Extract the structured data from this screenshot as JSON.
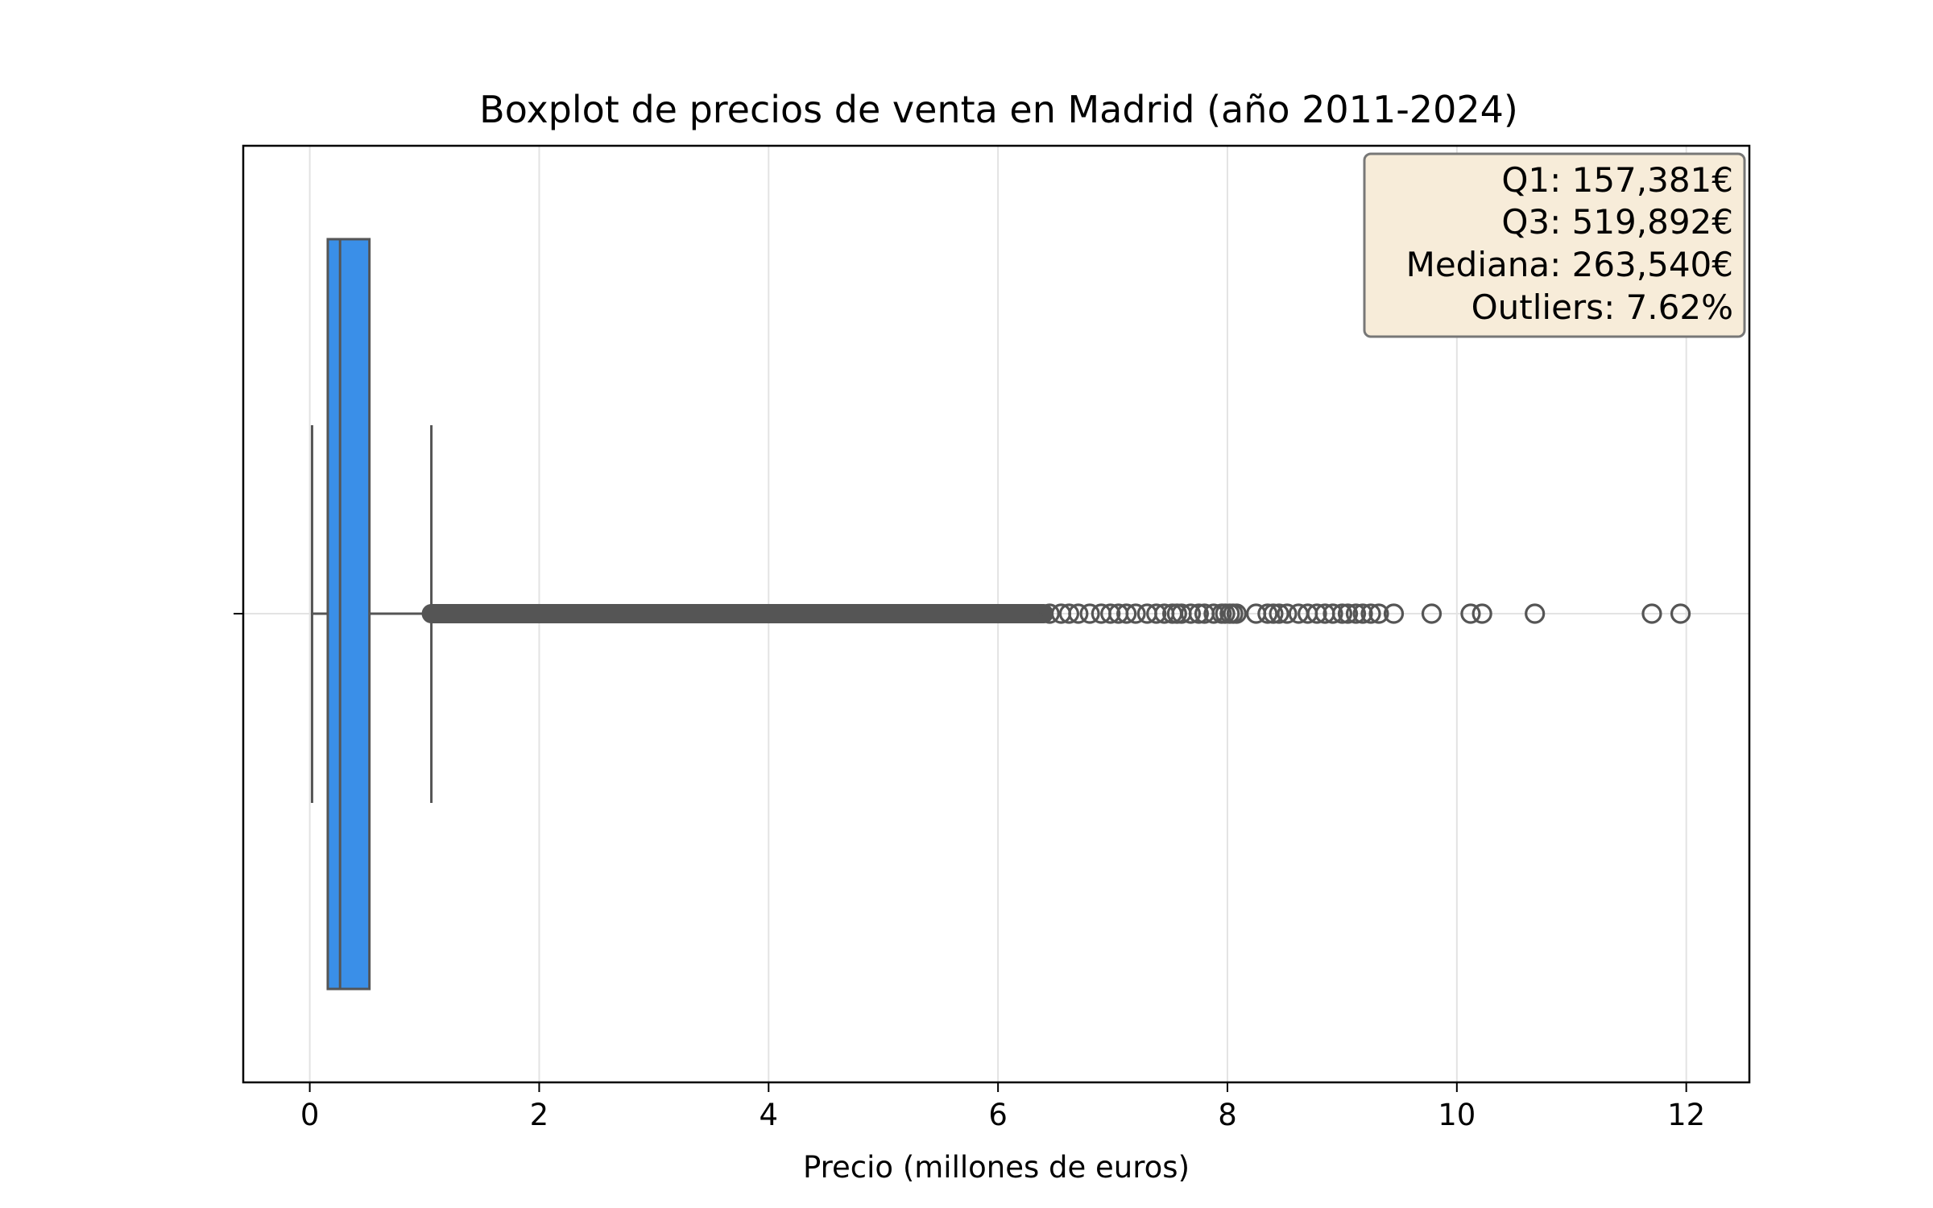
{
  "chart_data": {
    "type": "boxplot",
    "title": "Boxplot de precios de venta en Madrid (año 2011-2024)",
    "xlabel": "Precio (millones de euros)",
    "ylabel": "",
    "xlim": [
      -0.58,
      12.55
    ],
    "x_ticks": [
      0,
      2,
      4,
      6,
      8,
      10,
      12
    ],
    "grid": "x",
    "box": {
      "whisker_low": 0.02,
      "q1": 0.157,
      "median": 0.264,
      "q3": 0.52,
      "whisker_high": 1.06,
      "color": "#3a8fe8",
      "line_color": "#555555"
    },
    "outlier_dense_range": [
      1.06,
      6.4
    ],
    "outliers": [
      6.45,
      6.55,
      6.62,
      6.7,
      6.8,
      6.9,
      6.98,
      7.05,
      7.12,
      7.2,
      7.3,
      7.38,
      7.45,
      7.52,
      7.56,
      7.6,
      7.68,
      7.75,
      7.8,
      7.88,
      7.95,
      7.98,
      8.02,
      8.05,
      8.08,
      8.25,
      8.35,
      8.4,
      8.45,
      8.52,
      8.62,
      8.7,
      8.78,
      8.85,
      8.92,
      9.0,
      9.05,
      9.12,
      9.18,
      9.25,
      9.32,
      9.45,
      9.78,
      10.12,
      10.22,
      10.68,
      11.7,
      11.95
    ],
    "stats_box": {
      "lines": [
        "Q1: 157,381€",
        "Q3: 519,892€",
        "Mediana: 263,540€",
        "Outliers: 7.62%"
      ],
      "placement": "top-right",
      "background": "#f7ecd9"
    }
  }
}
